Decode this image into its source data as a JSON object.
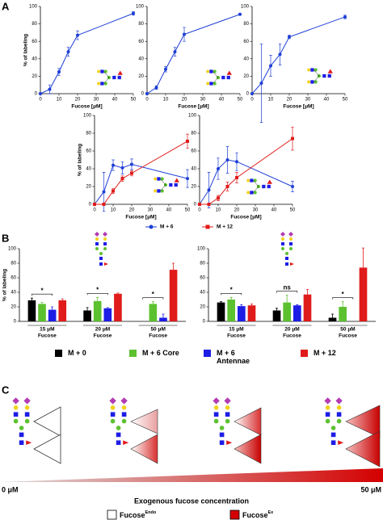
{
  "panel_labels": [
    "A",
    "B",
    "C"
  ],
  "chart_data": [
    {
      "type": "line",
      "x": [
        0,
        5,
        10,
        15,
        20,
        50
      ],
      "values": [
        0,
        5,
        25,
        48,
        67,
        92
      ],
      "errors": [
        1,
        5,
        4,
        5,
        5,
        2
      ],
      "color": "#1f3fd6",
      "marker": "circle",
      "xlim": [
        0,
        50
      ],
      "xticks": [
        0,
        10,
        20,
        30,
        40,
        50
      ],
      "ylim": [
        0,
        100
      ],
      "yticks": [
        0,
        20,
        40,
        60,
        80,
        100
      ],
      "xlabel": "Fucose [μM]",
      "ylabel": "% of labeling"
    },
    {
      "type": "line",
      "x": [
        0,
        5,
        10,
        15,
        20,
        50
      ],
      "values": [
        0,
        7,
        28,
        48,
        68,
        91
      ],
      "errors": [
        1,
        2,
        3,
        5,
        8,
        1
      ],
      "color": "#1f3fd6",
      "marker": "circle",
      "xlim": [
        0,
        50
      ],
      "xticks": [
        0,
        10,
        20,
        30,
        40,
        50
      ],
      "ylim": [
        0,
        100
      ],
      "yticks": [
        0,
        20,
        40,
        60,
        80,
        100
      ],
      "xlabel": "Fucose [μM]"
    },
    {
      "type": "line",
      "x": [
        0,
        5,
        10,
        15,
        20,
        50
      ],
      "values": [
        0,
        12,
        32,
        45,
        65,
        88
      ],
      "errors": [
        1,
        45,
        12,
        12,
        2,
        2
      ],
      "color": "#1f3fd6",
      "marker": "circle",
      "xlim": [
        0,
        50
      ],
      "xticks": [
        0,
        10,
        20,
        30,
        40,
        50
      ],
      "ylim": [
        0,
        100
      ],
      "yticks": [
        0,
        20,
        40,
        60,
        80,
        100
      ],
      "xlabel": "Fucose [μM]"
    },
    {
      "type": "line",
      "x": [
        0,
        5,
        10,
        15,
        20,
        50
      ],
      "series": [
        {
          "name": "M + 6",
          "color": "#1f3fd6",
          "marker": "circle",
          "values": [
            0,
            14,
            44,
            41,
            45,
            29
          ],
          "errors": [
            1,
            22,
            6,
            7,
            6,
            10
          ]
        },
        {
          "name": "M + 12",
          "color": "#e01b1b",
          "marker": "square",
          "values": [
            0,
            0,
            15,
            29,
            35,
            71
          ],
          "errors": [
            0,
            1,
            3,
            3,
            3,
            8
          ]
        }
      ],
      "xlim": [
        0,
        50
      ],
      "xticks": [
        0,
        10,
        20,
        30,
        40,
        50
      ],
      "ylim": [
        0,
        100
      ],
      "yticks": [
        0,
        20,
        40,
        60,
        80,
        100
      ],
      "xlabel": "Fucose [μM]",
      "ylabel": "% of labeling"
    },
    {
      "type": "line",
      "x": [
        0,
        5,
        10,
        15,
        20,
        50
      ],
      "series": [
        {
          "name": "M + 6",
          "color": "#1f3fd6",
          "marker": "circle",
          "values": [
            0,
            16,
            40,
            50,
            48,
            20
          ],
          "errors": [
            1,
            20,
            12,
            15,
            10,
            6
          ]
        },
        {
          "name": "M + 12",
          "color": "#e01b1b",
          "marker": "square",
          "values": [
            0,
            0,
            7,
            20,
            30,
            74
          ],
          "errors": [
            0,
            1,
            3,
            5,
            6,
            13
          ]
        }
      ],
      "xlim": [
        0,
        50
      ],
      "xticks": [
        0,
        10,
        20,
        30,
        40,
        50
      ],
      "ylim": [
        0,
        100
      ],
      "yticks": [
        0,
        20,
        40,
        60,
        80,
        100
      ],
      "xlabel": "Fucose [μM]"
    },
    {
      "type": "bar",
      "categories": [
        [
          "15 μM",
          "Fucose"
        ],
        [
          "20 μM",
          "Fucose"
        ],
        [
          "50 μM",
          "Fucose"
        ]
      ],
      "series": [
        {
          "name": "M + 0",
          "color": "#000000",
          "values": [
            29,
            15,
            null
          ],
          "errors": [
            3,
            4,
            null
          ]
        },
        {
          "name": "M + 6 Core",
          "color": "#5cc12f",
          "values": [
            24,
            28,
            24
          ],
          "errors": [
            2,
            5,
            3
          ]
        },
        {
          "name": "M + 6 Antennae",
          "color": "#1d1de6",
          "values": [
            16,
            18,
            5
          ],
          "errors": [
            4,
            1,
            5
          ]
        },
        {
          "name": "M + 12",
          "color": "#e01b1b",
          "values": [
            29,
            38,
            71
          ],
          "errors": [
            2,
            1,
            9
          ]
        }
      ],
      "annotations": [
        "*",
        "*",
        "*"
      ],
      "ylim": [
        0,
        100
      ],
      "yticks": [
        0,
        20,
        40,
        60,
        80,
        100
      ],
      "ylabel": "% of labeling"
    },
    {
      "type": "bar",
      "categories": [
        [
          "15 μM",
          "Fucose"
        ],
        [
          "20 μM",
          "Fucose"
        ],
        [
          "50 μM",
          "Fucose"
        ]
      ],
      "series": [
        {
          "name": "M + 0",
          "color": "#000000",
          "values": [
            26,
            15,
            5
          ],
          "errors": [
            1,
            3,
            5
          ]
        },
        {
          "name": "M + 6 Core",
          "color": "#5cc12f",
          "values": [
            30,
            26,
            20
          ],
          "errors": [
            3,
            10,
            7
          ]
        },
        {
          "name": "M + 6 Antennae",
          "color": "#1d1de6",
          "values": [
            21,
            22,
            null
          ],
          "errors": [
            2,
            1,
            null
          ]
        },
        {
          "name": "M + 12",
          "color": "#e01b1b",
          "values": [
            22,
            37,
            74
          ],
          "errors": [
            2,
            7,
            27
          ]
        }
      ],
      "annotations": [
        "*",
        "ns",
        "*"
      ],
      "ylim": [
        0,
        100
      ],
      "yticks": [
        0,
        20,
        40,
        60,
        80,
        100
      ]
    }
  ],
  "panel_c": {
    "start_label": "0 μM",
    "end_label": "50 μM",
    "axis_title": "Exogenous fucose concentration",
    "legend": [
      {
        "label": "Fucose",
        "sup": "Endo"
      },
      {
        "label": "Fucose",
        "sup": "Ex"
      }
    ]
  }
}
